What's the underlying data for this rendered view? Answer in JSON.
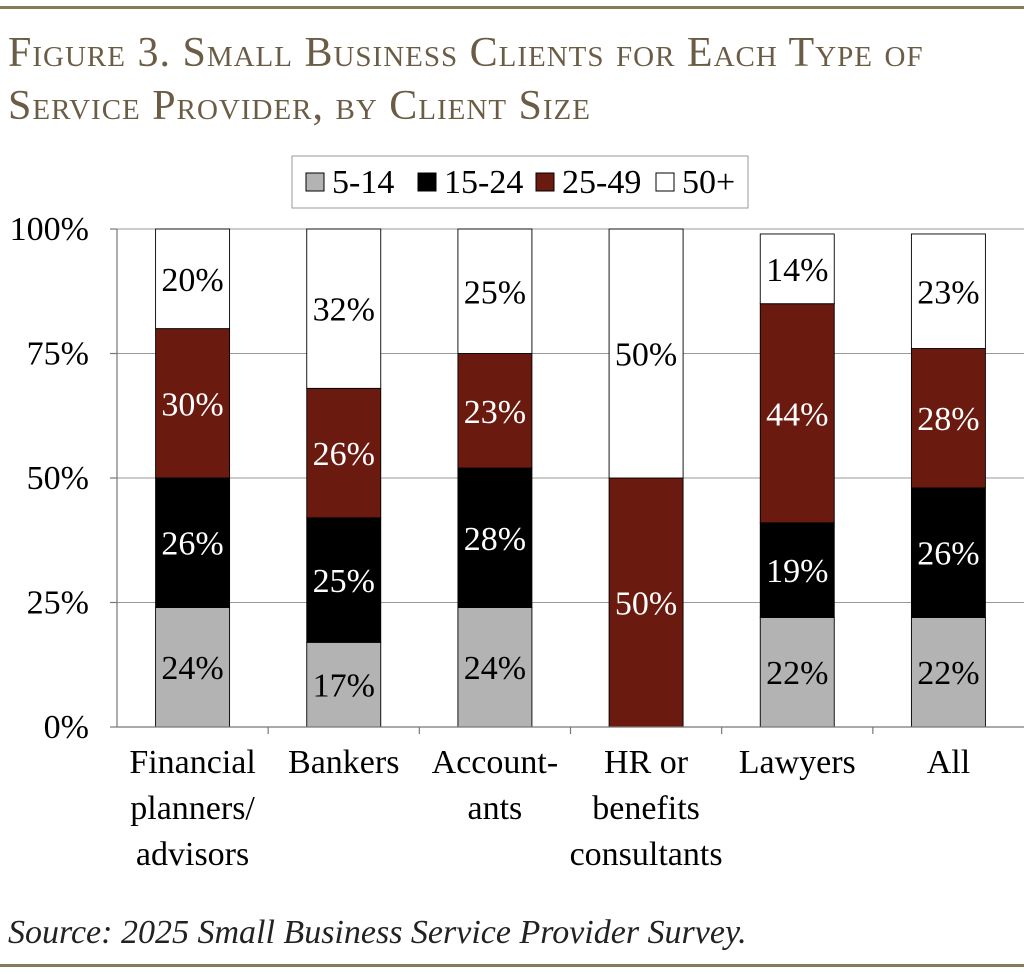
{
  "figure": {
    "title_line1": "Figure 3. Small Business Clients for Each Type of",
    "title_line2": "Service Provider, by Client Size",
    "source": "Source: 2025 Small Business Service Provider Survey."
  },
  "chart_data": {
    "type": "bar",
    "stacked": true,
    "title": "Figure 3. Small Business Clients for Each Type of Service Provider, by Client Size",
    "categories": [
      [
        "Financial",
        "planners/",
        "advisors"
      ],
      [
        "Bankers"
      ],
      [
        "Account-",
        "ants"
      ],
      [
        "HR or",
        "benefits",
        "consultants"
      ],
      [
        "Lawyers"
      ],
      [
        "All"
      ]
    ],
    "series": [
      {
        "name": "5-14",
        "color": "#b3b3b3",
        "label_color": "#000000",
        "values": [
          24,
          17,
          24,
          0,
          22,
          22
        ]
      },
      {
        "name": "15-24",
        "color": "#000000",
        "label_color": "#ffffff",
        "values": [
          26,
          25,
          28,
          0,
          19,
          26
        ]
      },
      {
        "name": "25-49",
        "color": "#6b1a10",
        "label_color": "#ffffff",
        "values": [
          30,
          26,
          23,
          50,
          44,
          28
        ]
      },
      {
        "name": "50+",
        "color": "#ffffff",
        "label_color": "#000000",
        "values": [
          20,
          32,
          25,
          50,
          14,
          23
        ]
      }
    ],
    "y_ticks": [
      "0%",
      "25%",
      "50%",
      "75%",
      "100%"
    ],
    "ylim": [
      0,
      100
    ],
    "grid": true,
    "legend": "top-center"
  }
}
